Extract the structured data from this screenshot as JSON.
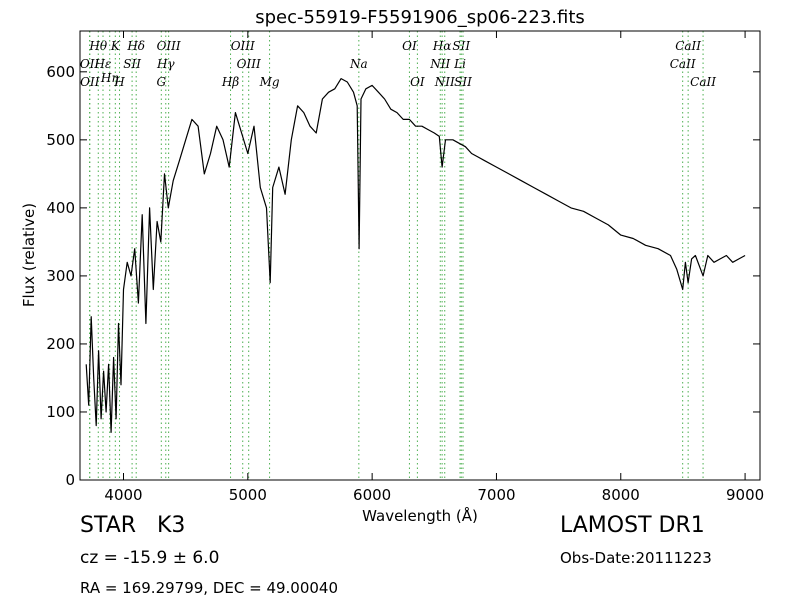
{
  "chart_data": {
    "type": "line",
    "title": "spec-55919-F5591906_sp06-223.fits",
    "xlabel": "Wavelength (Å)",
    "ylabel": "Flux (relative)",
    "xlim": [
      3650,
      9120
    ],
    "ylim": [
      0,
      660
    ],
    "xticks": [
      4000,
      5000,
      6000,
      7000,
      8000,
      9000
    ],
    "yticks": [
      0,
      100,
      200,
      300,
      400,
      500,
      600
    ],
    "grid": false,
    "series": [
      {
        "color": "#000000",
        "x": [
          3700,
          3720,
          3740,
          3760,
          3780,
          3800,
          3820,
          3840,
          3860,
          3880,
          3900,
          3920,
          3940,
          3960,
          3980,
          4000,
          4030,
          4060,
          4090,
          4120,
          4150,
          4180,
          4210,
          4240,
          4270,
          4300,
          4330,
          4360,
          4400,
          4450,
          4500,
          4550,
          4600,
          4650,
          4700,
          4750,
          4800,
          4850,
          4900,
          4950,
          5000,
          5050,
          5100,
          5150,
          5180,
          5200,
          5250,
          5300,
          5350,
          5400,
          5450,
          5500,
          5550,
          5600,
          5650,
          5700,
          5750,
          5800,
          5850,
          5880,
          5895,
          5910,
          5950,
          6000,
          6050,
          6100,
          6150,
          6200,
          6250,
          6300,
          6350,
          6400,
          6450,
          6500,
          6540,
          6563,
          6590,
          6650,
          6700,
          6750,
          6800,
          6850,
          6900,
          7000,
          7100,
          7200,
          7300,
          7400,
          7500,
          7600,
          7700,
          7800,
          7900,
          8000,
          8100,
          8200,
          8300,
          8400,
          8450,
          8498,
          8520,
          8542,
          8570,
          8600,
          8662,
          8700,
          8750,
          8800,
          8850,
          8900,
          8950,
          9000
        ],
        "y": [
          170,
          110,
          240,
          150,
          80,
          190,
          90,
          160,
          100,
          170,
          70,
          180,
          90,
          230,
          140,
          280,
          320,
          300,
          340,
          260,
          390,
          230,
          400,
          280,
          380,
          350,
          450,
          400,
          440,
          470,
          500,
          530,
          520,
          450,
          480,
          520,
          500,
          460,
          540,
          510,
          480,
          520,
          430,
          400,
          290,
          430,
          460,
          420,
          500,
          550,
          540,
          520,
          510,
          560,
          570,
          575,
          590,
          585,
          570,
          550,
          340,
          560,
          575,
          580,
          570,
          560,
          545,
          540,
          530,
          530,
          520,
          520,
          515,
          510,
          505,
          460,
          500,
          500,
          495,
          490,
          480,
          475,
          470,
          460,
          450,
          440,
          430,
          420,
          410,
          400,
          395,
          385,
          375,
          360,
          355,
          345,
          340,
          330,
          310,
          280,
          320,
          290,
          325,
          330,
          300,
          330,
          320,
          325,
          330,
          320,
          325,
          330
        ]
      }
    ],
    "line_markers": [
      {
        "label": "Hθ",
        "x": 3797,
        "row": 0
      },
      {
        "label": "K",
        "x": 3934,
        "row": 0
      },
      {
        "label": "Hδ",
        "x": 4102,
        "row": 0
      },
      {
        "label": "OIII",
        "x": 4363,
        "row": 0
      },
      {
        "label": "OIII",
        "x": 4959,
        "row": 0
      },
      {
        "label": "OI",
        "x": 6300,
        "row": 0
      },
      {
        "label": "Hα",
        "x": 6563,
        "row": 0
      },
      {
        "label": "SII",
        "x": 6717,
        "row": 0
      },
      {
        "label": "CaII",
        "x": 8542,
        "row": 0
      },
      {
        "label": "OII",
        "x": 3727,
        "row": 1
      },
      {
        "label": "Hε",
        "x": 3835,
        "row": 1
      },
      {
        "label": "SII",
        "x": 4069,
        "row": 1
      },
      {
        "label": "Hγ",
        "x": 4340,
        "row": 1
      },
      {
        "label": "OIII",
        "x": 5007,
        "row": 1
      },
      {
        "label": "Na",
        "x": 5893,
        "row": 1
      },
      {
        "label": "NII",
        "x": 6548,
        "row": 1
      },
      {
        "label": "Li",
        "x": 6707,
        "row": 1
      },
      {
        "label": "CaII",
        "x": 8498,
        "row": 1
      },
      {
        "label": "Hη",
        "x": 3889,
        "row": 2
      },
      {
        "label": "OII",
        "x": 3729,
        "row": 3
      },
      {
        "label": "H",
        "x": 3968,
        "row": 3
      },
      {
        "label": "G",
        "x": 4304,
        "row": 3
      },
      {
        "label": "Hβ",
        "x": 4861,
        "row": 3
      },
      {
        "label": "Mg",
        "x": 5175,
        "row": 3
      },
      {
        "label": "OI",
        "x": 6364,
        "row": 3
      },
      {
        "label": "NII",
        "x": 6584,
        "row": 3
      },
      {
        "label": "SII",
        "x": 6731,
        "row": 3
      },
      {
        "label": "CaII",
        "x": 8662,
        "row": 3
      }
    ],
    "marker_color": "#4caf50"
  },
  "info": {
    "class_label": "STAR",
    "subclass_label": "K3",
    "cz_text": "cz = -15.9 ± 6.0",
    "coords_text": "RA = 169.29799, DEC = 49.00040",
    "survey": "LAMOST DR1",
    "obs_date": "Obs-Date:20111223"
  }
}
